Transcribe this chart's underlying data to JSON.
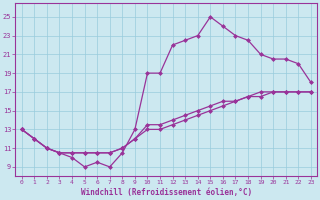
{
  "xlabel": "Windchill (Refroidissement éolien,°C)",
  "bg_color": "#cce8f0",
  "grid_color": "#99ccdd",
  "line_color": "#993399",
  "xlim": [
    -0.5,
    23.5
  ],
  "ylim": [
    8.0,
    26.5
  ],
  "xticks": [
    0,
    1,
    2,
    3,
    4,
    5,
    6,
    7,
    8,
    9,
    10,
    11,
    12,
    13,
    14,
    15,
    16,
    17,
    18,
    19,
    20,
    21,
    22,
    23
  ],
  "yticks": [
    9,
    11,
    13,
    15,
    17,
    19,
    21,
    23,
    25
  ],
  "x_all": [
    0,
    1,
    2,
    3,
    4,
    5,
    6,
    7,
    8,
    9,
    10,
    11,
    12,
    13,
    14,
    15,
    16,
    17,
    18,
    19,
    20,
    21,
    22,
    23
  ],
  "y_bottom": [
    13,
    12,
    11,
    10.5,
    10.5,
    10.5,
    10.5,
    10.5,
    11,
    12,
    13,
    13,
    13.5,
    14,
    14.5,
    15,
    15.5,
    16,
    16.5,
    16.5,
    17,
    17,
    17,
    17
  ],
  "y_middle": [
    13,
    12,
    11,
    10.5,
    10.5,
    10.5,
    10.5,
    10.5,
    11,
    12,
    13.5,
    13.5,
    14,
    14.5,
    15,
    15.5,
    16,
    16,
    16.5,
    17,
    17,
    17,
    17,
    17
  ],
  "y_top_x": [
    0,
    1,
    2,
    3,
    4,
    5,
    6,
    7,
    8,
    9,
    10,
    11,
    12,
    13,
    14,
    15,
    16,
    17,
    18,
    19,
    20,
    21,
    22,
    23
  ],
  "y_top": [
    13,
    12,
    11,
    10.5,
    10,
    9,
    9.5,
    9,
    10.5,
    13,
    19,
    19,
    22,
    22.5,
    23,
    25,
    24,
    23,
    22.5,
    21,
    20.5,
    20.5,
    20,
    18
  ]
}
